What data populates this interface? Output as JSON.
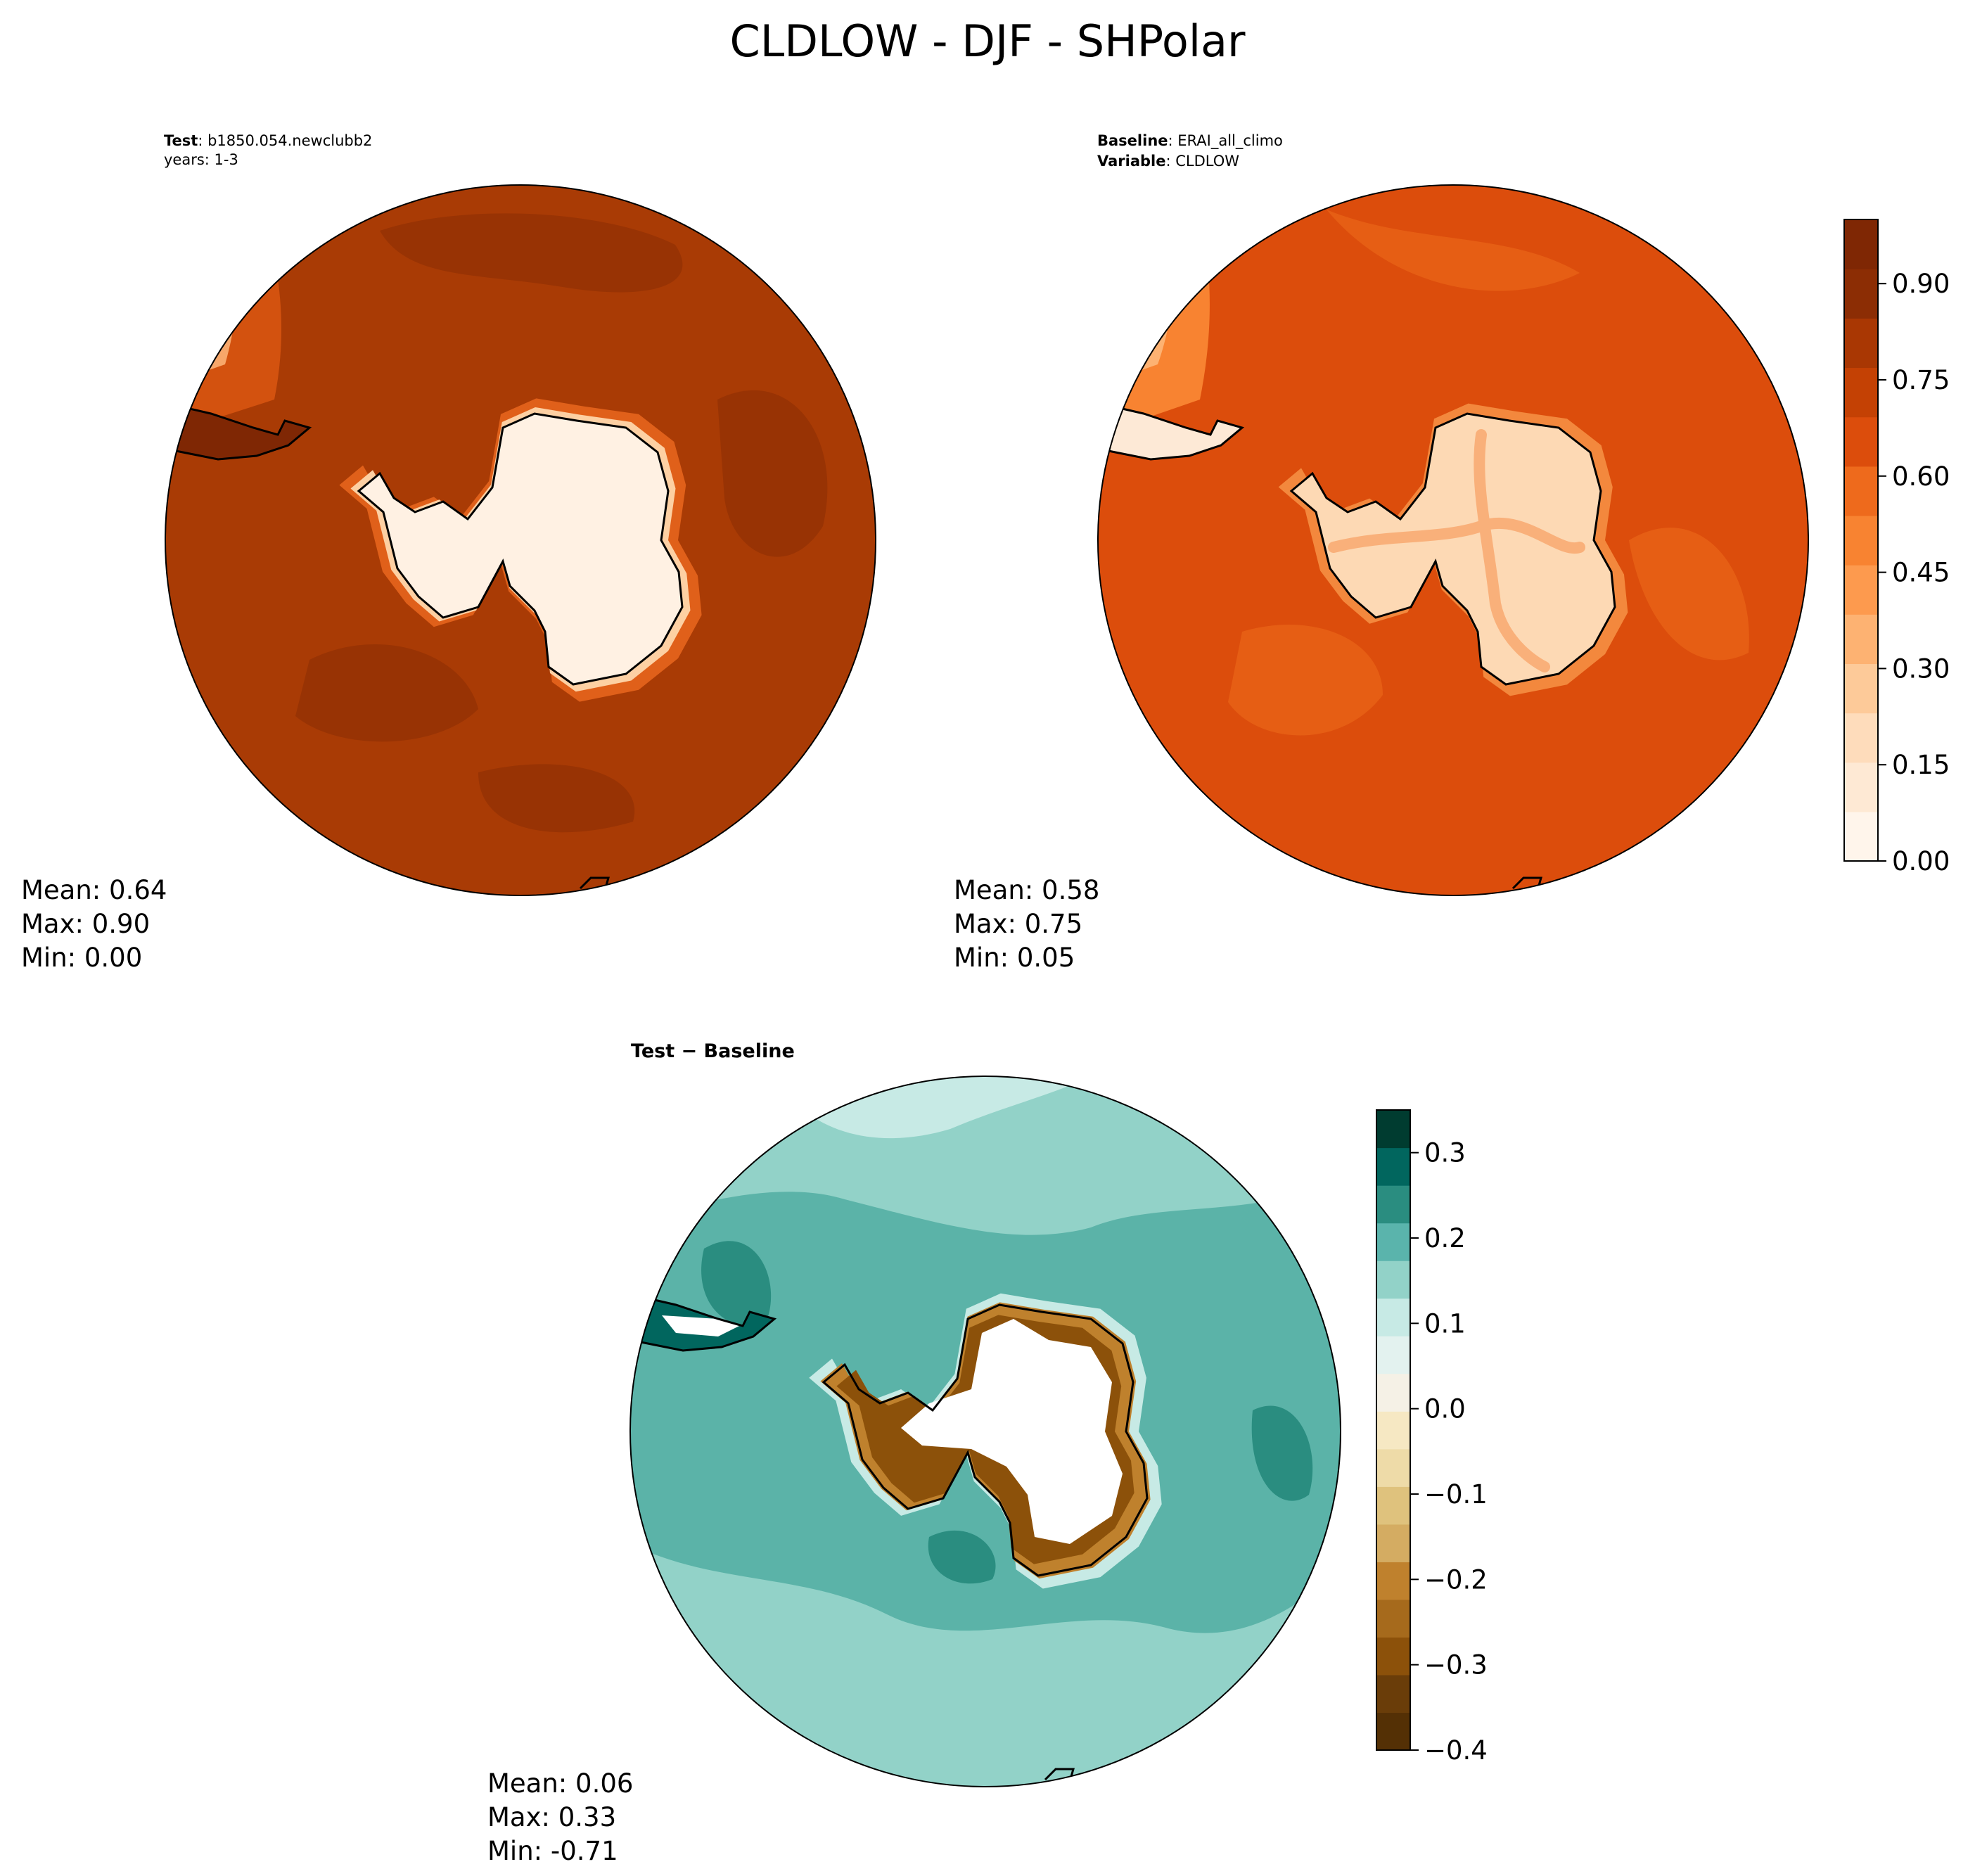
{
  "figure": {
    "title": "CLDLOW - DJF - SHPolar"
  },
  "panels": {
    "test": {
      "label_bold": "Test",
      "label_sep": ": ",
      "label_value": "b1850.054.newclubb2",
      "label_line2": "years: 1-3",
      "stats": {
        "mean": "Mean:  0.64",
        "max": "Max:  0.90",
        "min": "Min:  0.00"
      }
    },
    "baseline": {
      "label_bold": "Baseline",
      "label_sep": ": ",
      "label_value": "ERAI_all_climo",
      "label2_bold": "Variable",
      "label2_value": "CLDLOW",
      "stats": {
        "mean": "Mean:  0.58",
        "max": "Max:  0.75",
        "min": "Min:  0.05"
      }
    },
    "diff": {
      "label": "Test − Baseline",
      "stats": {
        "mean": "Mean:  0.06",
        "max": "Max:  0.33",
        "min": "Min: -0.71"
      }
    }
  },
  "colors": {
    "ocean_test": "#a93b05",
    "ocean_test_dark": "#983304",
    "ocean_base": "#dc4d0c",
    "ocean_base_light": "#e65e14",
    "land_light": "#fff1e3",
    "land_mid": "#fdd9b4",
    "diff_main": "#5bb3a8",
    "diff_light": "#92d2c8",
    "diff_pale": "#c7eae5",
    "diff_dark": "#2a8d80",
    "diff_brown": "#8c510a",
    "diff_tan": "#d8b365"
  },
  "chart_data": [
    {
      "type": "heatmap",
      "name": "Test",
      "projection": "south polar stereographic",
      "colormap": "Oranges",
      "colorbar": {
        "levels": [
          0.0,
          0.05,
          0.1,
          0.15,
          0.2,
          0.25,
          0.3,
          0.35,
          0.4,
          0.45,
          0.5,
          0.55,
          0.6,
          0.65,
          0.7,
          0.75,
          0.8,
          0.85,
          0.9,
          0.95,
          1.0
        ],
        "ticks": [
          0.0,
          0.15,
          0.3,
          0.45,
          0.6,
          0.75,
          0.9
        ],
        "tick_labels": [
          "0.00",
          "0.15",
          "0.30",
          "0.45",
          "0.60",
          "0.75",
          "0.90"
        ],
        "colors": [
          "#fff5eb",
          "#fee9d4",
          "#fedcbb",
          "#fdca99",
          "#fdb272",
          "#fd9a4e",
          "#f88331",
          "#ee6a1c",
          "#dc4d0c",
          "#c44104",
          "#a93703",
          "#8c2d04",
          "#7f2704"
        ]
      },
      "mean": 0.64,
      "max": 0.9,
      "min": 0.0
    },
    {
      "type": "heatmap",
      "name": "Baseline",
      "projection": "south polar stereographic",
      "colormap": "Oranges",
      "mean": 0.58,
      "max": 0.75,
      "min": 0.05
    },
    {
      "type": "heatmap",
      "name": "Test - Baseline",
      "projection": "south polar stereographic",
      "colormap": "BrBG",
      "colorbar": {
        "range": [
          -0.4,
          0.35
        ],
        "ticks": [
          -0.4,
          -0.3,
          -0.2,
          -0.1,
          0.0,
          0.1,
          0.2,
          0.3
        ],
        "tick_labels": [
          "−0.4",
          "−0.3",
          "−0.2",
          "−0.1",
          "0.0",
          "0.1",
          "0.2",
          "0.3"
        ],
        "colors": [
          "#543005",
          "#6a3d09",
          "#8c510a",
          "#a66a1c",
          "#bf812d",
          "#d4ac62",
          "#dfc27d",
          "#eedba8",
          "#f6e8c3",
          "#f5f1e6",
          "#e3f2ef",
          "#c7eae5",
          "#92d2c8",
          "#5ab4ac",
          "#2a8d80",
          "#01665e",
          "#003c30"
        ]
      },
      "mean": 0.06,
      "max": 0.33,
      "min": -0.71
    }
  ]
}
